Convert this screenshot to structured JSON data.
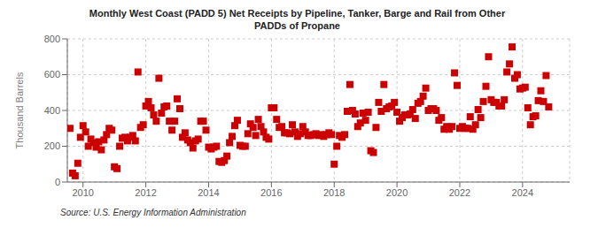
{
  "chart_data": {
    "type": "scatter",
    "title": "Monthly West Coast (PADD 5) Net Receipts by Pipeline, Tanker, Barge and Rail from Other\nPADDs of Propane",
    "y_label": "Thousand Barrels",
    "annotation": "Source: U.S. Energy Information Administration",
    "color": "#cc0000",
    "marker": "square",
    "grid": true,
    "xlim": [
      2009.5,
      2025.5
    ],
    "xticks": [
      2010,
      2012,
      2014,
      2016,
      2018,
      2020,
      2022,
      2024
    ],
    "ylim": [
      0,
      800
    ],
    "yticks": [
      0,
      200,
      400,
      600,
      800
    ],
    "x": [
      2009.583,
      2009.667,
      2009.75,
      2009.833,
      2009.917,
      2010.0,
      2010.083,
      2010.167,
      2010.25,
      2010.333,
      2010.417,
      2010.5,
      2010.583,
      2010.667,
      2010.75,
      2010.833,
      2010.917,
      2011.0,
      2011.083,
      2011.167,
      2011.25,
      2011.333,
      2011.417,
      2011.5,
      2011.583,
      2011.667,
      2011.75,
      2011.833,
      2011.917,
      2012.0,
      2012.083,
      2012.167,
      2012.25,
      2012.333,
      2012.417,
      2012.5,
      2012.583,
      2012.667,
      2012.75,
      2012.833,
      2012.917,
      2013.0,
      2013.083,
      2013.167,
      2013.25,
      2013.333,
      2013.417,
      2013.5,
      2013.583,
      2013.667,
      2013.75,
      2013.833,
      2013.917,
      2014.0,
      2014.083,
      2014.167,
      2014.25,
      2014.333,
      2014.417,
      2014.5,
      2014.583,
      2014.667,
      2014.75,
      2014.833,
      2014.917,
      2015.0,
      2015.083,
      2015.167,
      2015.25,
      2015.333,
      2015.417,
      2015.5,
      2015.583,
      2015.667,
      2015.75,
      2015.833,
      2015.917,
      2016.0,
      2016.083,
      2016.167,
      2016.25,
      2016.333,
      2016.417,
      2016.5,
      2016.583,
      2016.667,
      2016.75,
      2016.833,
      2016.917,
      2017.0,
      2017.083,
      2017.167,
      2017.25,
      2017.333,
      2017.417,
      2017.5,
      2017.583,
      2017.667,
      2017.75,
      2017.833,
      2017.917,
      2018.0,
      2018.083,
      2018.167,
      2018.25,
      2018.333,
      2018.417,
      2018.5,
      2018.583,
      2018.667,
      2018.75,
      2018.833,
      2018.917,
      2019.0,
      2019.083,
      2019.167,
      2019.25,
      2019.333,
      2019.417,
      2019.5,
      2019.583,
      2019.667,
      2019.75,
      2019.833,
      2019.917,
      2020.0,
      2020.083,
      2020.167,
      2020.25,
      2020.333,
      2020.417,
      2020.5,
      2020.583,
      2020.667,
      2020.75,
      2020.833,
      2020.917,
      2021.0,
      2021.083,
      2021.167,
      2021.25,
      2021.333,
      2021.417,
      2021.5,
      2021.583,
      2021.667,
      2021.75,
      2021.833,
      2021.917,
      2022.0,
      2022.083,
      2022.167,
      2022.25,
      2022.333,
      2022.417,
      2022.5,
      2022.583,
      2022.667,
      2022.75,
      2022.833,
      2022.917,
      2023.0,
      2023.083,
      2023.167,
      2023.25,
      2023.333,
      2023.417,
      2023.5,
      2023.583,
      2023.667,
      2023.75,
      2023.833,
      2023.917,
      2024.0,
      2024.083,
      2024.167,
      2024.25,
      2024.333,
      2024.417,
      2024.5,
      2024.583,
      2024.667,
      2024.75,
      2024.833
    ],
    "values": [
      300,
      50,
      35,
      105,
      250,
      315,
      280,
      200,
      240,
      220,
      195,
      225,
      180,
      235,
      265,
      300,
      290,
      85,
      75,
      200,
      245,
      250,
      230,
      250,
      260,
      230,
      615,
      305,
      320,
      425,
      450,
      415,
      375,
      340,
      580,
      385,
      420,
      425,
      340,
      290,
      340,
      465,
      410,
      250,
      275,
      235,
      220,
      190,
      230,
      240,
      340,
      340,
      290,
      195,
      185,
      195,
      200,
      115,
      110,
      120,
      145,
      220,
      255,
      315,
      345,
      205,
      200,
      200,
      270,
      325,
      305,
      260,
      350,
      310,
      280,
      250,
      240,
      415,
      415,
      350,
      305,
      310,
      275,
      275,
      270,
      320,
      280,
      255,
      270,
      310,
      280,
      260,
      260,
      265,
      270,
      260,
      265,
      255,
      265,
      275,
      265,
      100,
      200,
      260,
      250,
      265,
      395,
      545,
      400,
      380,
      310,
      330,
      385,
      345,
      390,
      175,
      165,
      305,
      445,
      395,
      545,
      410,
      420,
      425,
      445,
      390,
      340,
      360,
      375,
      375,
      380,
      405,
      355,
      440,
      450,
      480,
      525,
      400,
      410,
      410,
      400,
      345,
      360,
      295,
      310,
      295,
      310,
      610,
      540,
      300,
      310,
      300,
      300,
      365,
      295,
      320,
      405,
      360,
      450,
      535,
      700,
      460,
      445,
      445,
      425,
      425,
      460,
      615,
      660,
      755,
      580,
      600,
      520,
      525,
      530,
      415,
      320,
      365,
      370,
      455,
      510,
      450,
      595,
      420
    ]
  }
}
